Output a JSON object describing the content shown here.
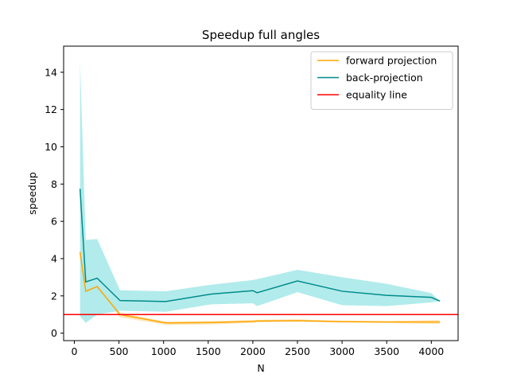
{
  "chart_data": {
    "type": "line",
    "title": "Speedup full angles",
    "xlabel": "N",
    "ylabel": "speedup",
    "xlim": [
      -120,
      4300
    ],
    "ylim": [
      -0.4,
      15.4
    ],
    "xticks": [
      0,
      500,
      1000,
      1500,
      2000,
      2500,
      3000,
      3500,
      4000
    ],
    "yticks": [
      0,
      2,
      4,
      6,
      8,
      10,
      12,
      14
    ],
    "grid": false,
    "legend_position": "top-right",
    "series": [
      {
        "name": "forward projection",
        "color": "#ffa500",
        "band_color": "#ffe4b5",
        "x": [
          64,
          128,
          256,
          512,
          1024,
          1536,
          2000,
          2048,
          2500,
          3000,
          3500,
          4000,
          4096
        ],
        "y": [
          4.35,
          2.25,
          2.5,
          1.0,
          0.55,
          0.57,
          0.63,
          0.65,
          0.67,
          0.62,
          0.6,
          0.6,
          0.6
        ],
        "lower": [
          4.0,
          2.1,
          2.35,
          0.85,
          0.45,
          0.47,
          0.55,
          0.58,
          0.62,
          0.57,
          0.55,
          0.5,
          0.5
        ],
        "upper": [
          4.6,
          2.4,
          2.6,
          1.1,
          0.62,
          0.65,
          0.7,
          0.72,
          0.74,
          0.67,
          0.65,
          0.7,
          0.7
        ]
      },
      {
        "name": "back-projection",
        "color": "#008b8b",
        "band_color": "#aeeaea",
        "x": [
          64,
          128,
          256,
          512,
          1024,
          1536,
          2000,
          2048,
          2500,
          3000,
          3500,
          4000,
          4096
        ],
        "y": [
          7.75,
          2.75,
          2.95,
          1.75,
          1.7,
          2.1,
          2.28,
          2.17,
          2.8,
          2.25,
          2.03,
          1.92,
          1.72
        ],
        "lower": [
          0.9,
          0.55,
          1.0,
          1.2,
          1.15,
          1.55,
          1.6,
          1.45,
          2.2,
          1.5,
          1.45,
          1.65,
          1.72
        ],
        "upper": [
          14.6,
          5.0,
          5.05,
          2.3,
          2.25,
          2.6,
          2.85,
          2.9,
          3.4,
          3.0,
          2.65,
          2.15,
          1.72
        ]
      },
      {
        "name": "equality line",
        "color": "#ff0000",
        "type": "hline",
        "y": 1.0
      }
    ]
  }
}
